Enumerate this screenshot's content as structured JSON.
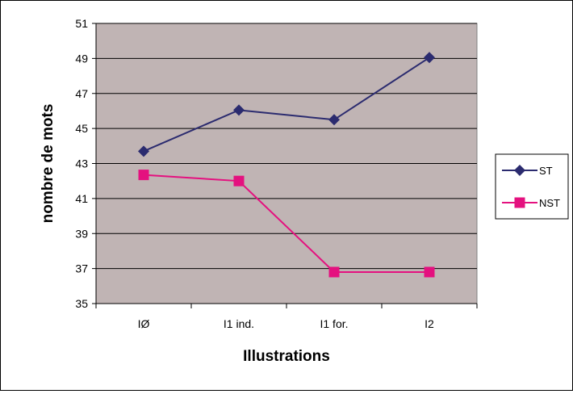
{
  "chart_data": {
    "type": "line",
    "title": "",
    "xlabel": "Illustrations",
    "ylabel": "nombre de mots",
    "categories": [
      "IØ",
      "I1 ind.",
      "I1 for.",
      "I2"
    ],
    "ylim": [
      35,
      51
    ],
    "yticks": [
      35,
      37,
      39,
      41,
      43,
      45,
      47,
      49,
      51
    ],
    "grid": true,
    "legend_position": "right",
    "plot_background": "#c0b4b4",
    "series": [
      {
        "name": "ST",
        "values": [
          43.7,
          46.05,
          45.5,
          49.05
        ],
        "color": "#2b2b6f",
        "marker": "diamond"
      },
      {
        "name": "NST",
        "values": [
          42.35,
          42.0,
          36.8,
          36.8
        ],
        "color": "#e4117f",
        "marker": "square"
      }
    ]
  }
}
